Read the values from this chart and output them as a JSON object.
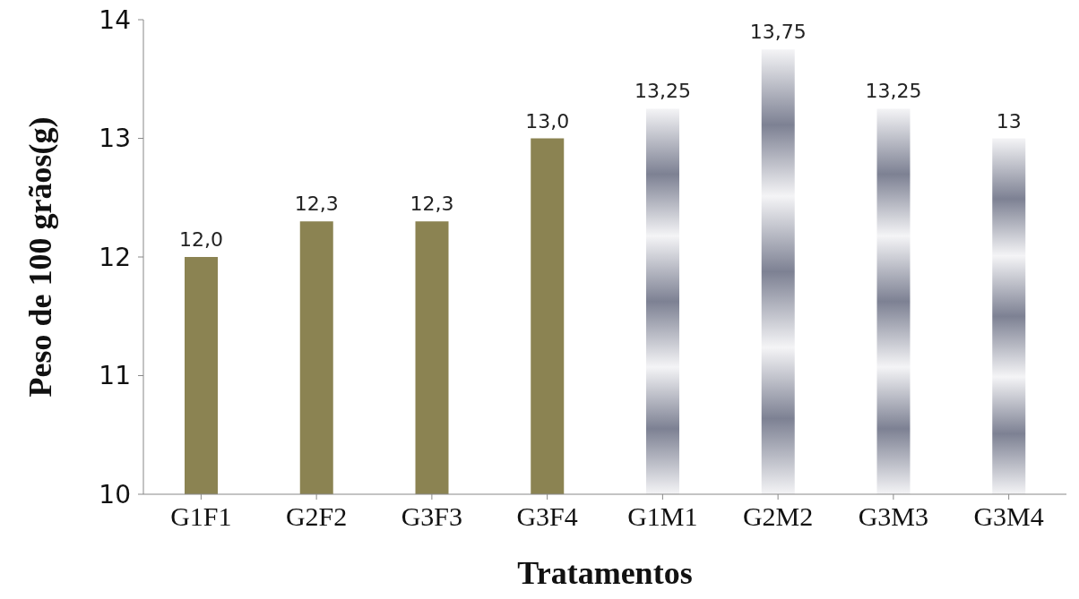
{
  "chart_data": {
    "type": "bar",
    "xlabel": "Tratamentos",
    "ylabel": "Peso de 100 grãos(g)",
    "categories": [
      "G1F1",
      "G2F2",
      "G3F3",
      "G3F4",
      "G1M1",
      "G2M2",
      "G3M3",
      "G3M4"
    ],
    "values": [
      12.0,
      12.3,
      12.3,
      13.0,
      13.25,
      13.75,
      13.25,
      13
    ],
    "value_labels": [
      "12,0",
      "12,3",
      "12,3",
      "13,0",
      "13,25",
      "13,75",
      "13,25",
      "13"
    ],
    "colors": [
      "#8b8352",
      "#8b8352",
      "#8b8352",
      "#8b8352",
      "#7d8193",
      "#7d8193",
      "#7d8193",
      "#7d8193"
    ],
    "ylim": [
      10,
      14
    ],
    "yticks": [
      10,
      11,
      12,
      13,
      14
    ],
    "grid": false,
    "legend": false
  }
}
